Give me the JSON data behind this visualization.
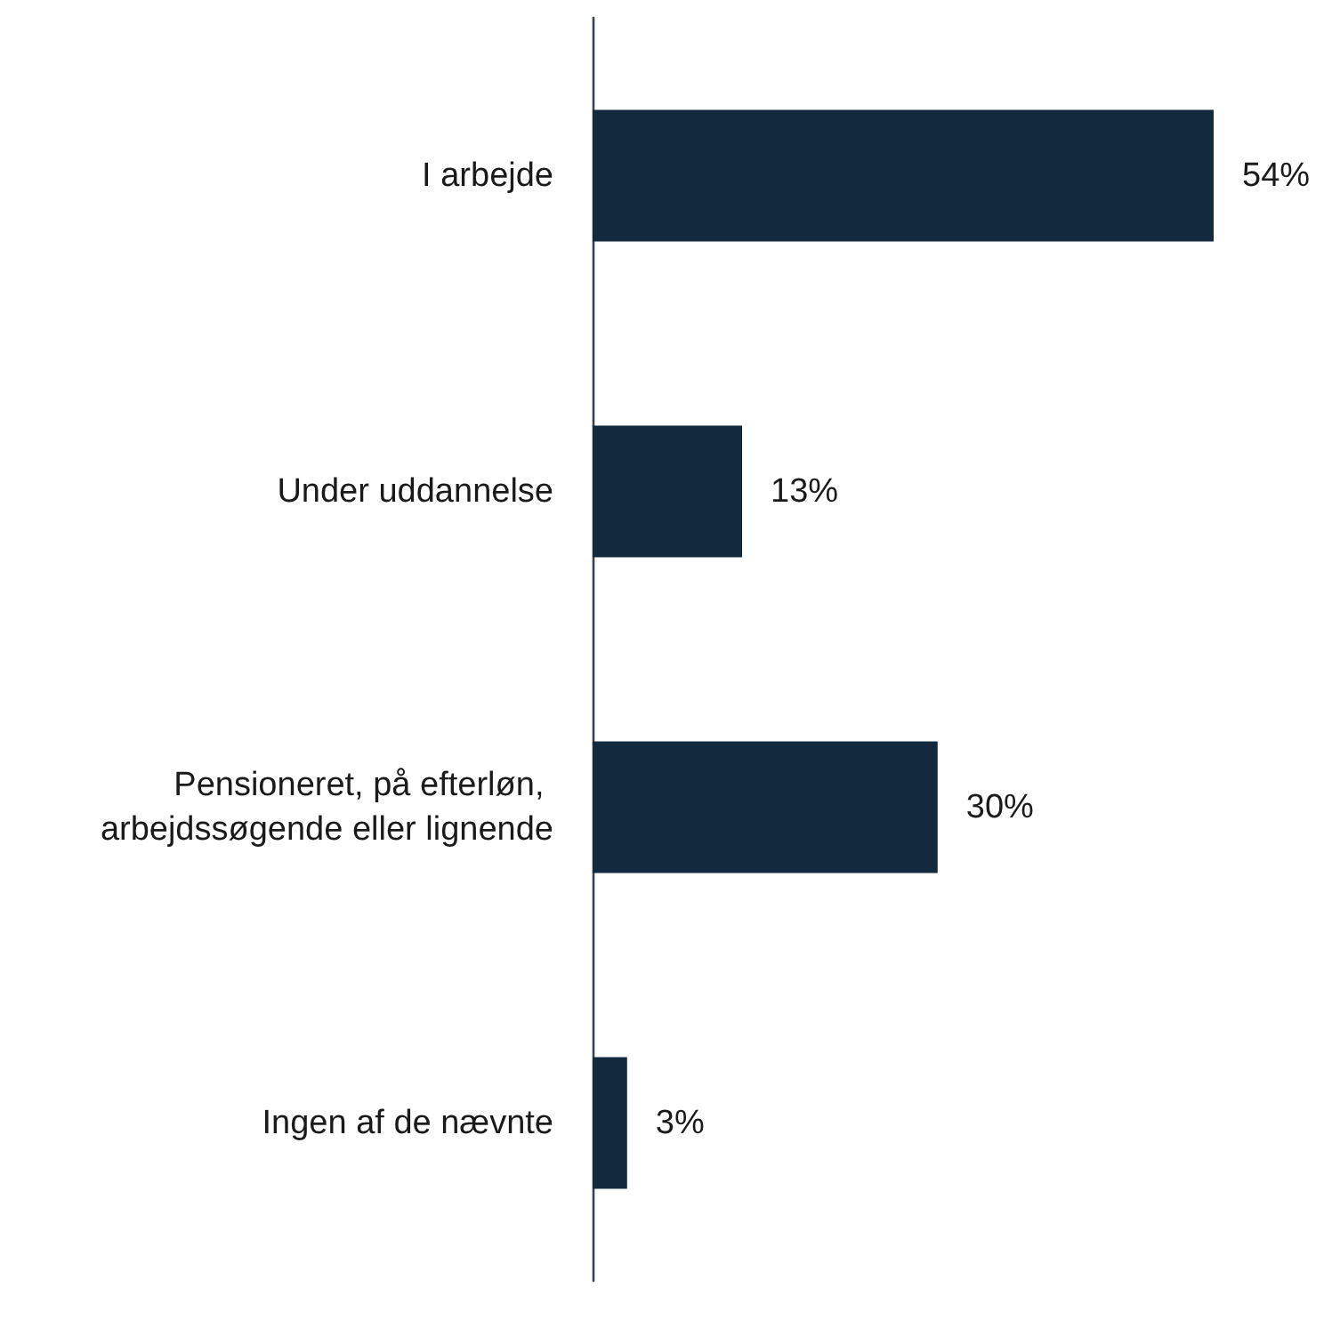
{
  "chart_data": {
    "type": "bar",
    "orientation": "horizontal",
    "categories": [
      "I arbejde",
      "Under uddannelse",
      "Pensioneret, på efterløn, arbejdssøgende eller lignende",
      "Ingen af de nævnte"
    ],
    "values": [
      54,
      13,
      30,
      3
    ],
    "value_labels": [
      "54%",
      "13%",
      "30%",
      "3%"
    ],
    "color": "#132a3e"
  }
}
